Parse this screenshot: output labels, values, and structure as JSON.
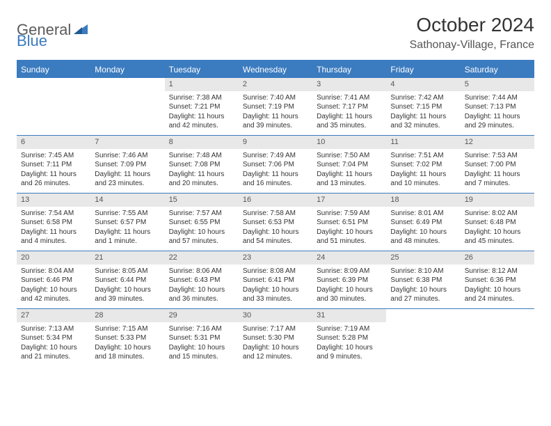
{
  "brand": {
    "part1": "General",
    "part2": "Blue"
  },
  "title": "October 2024",
  "location": "Sathonay-Village, France",
  "colors": {
    "accent": "#3b7bbf",
    "header_bg": "#3b7bbf",
    "header_text": "#ffffff",
    "daynum_bg": "#e8e8e8",
    "text": "#333333",
    "logo_gray": "#5a5a5a",
    "logo_blue": "#3b7bbf"
  },
  "daynames": [
    "Sunday",
    "Monday",
    "Tuesday",
    "Wednesday",
    "Thursday",
    "Friday",
    "Saturday"
  ],
  "weeks": [
    [
      {
        "n": "",
        "sr": "",
        "ss": "",
        "dl": ""
      },
      {
        "n": "",
        "sr": "",
        "ss": "",
        "dl": ""
      },
      {
        "n": "1",
        "sr": "Sunrise: 7:38 AM",
        "ss": "Sunset: 7:21 PM",
        "dl": "Daylight: 11 hours and 42 minutes."
      },
      {
        "n": "2",
        "sr": "Sunrise: 7:40 AM",
        "ss": "Sunset: 7:19 PM",
        "dl": "Daylight: 11 hours and 39 minutes."
      },
      {
        "n": "3",
        "sr": "Sunrise: 7:41 AM",
        "ss": "Sunset: 7:17 PM",
        "dl": "Daylight: 11 hours and 35 minutes."
      },
      {
        "n": "4",
        "sr": "Sunrise: 7:42 AM",
        "ss": "Sunset: 7:15 PM",
        "dl": "Daylight: 11 hours and 32 minutes."
      },
      {
        "n": "5",
        "sr": "Sunrise: 7:44 AM",
        "ss": "Sunset: 7:13 PM",
        "dl": "Daylight: 11 hours and 29 minutes."
      }
    ],
    [
      {
        "n": "6",
        "sr": "Sunrise: 7:45 AM",
        "ss": "Sunset: 7:11 PM",
        "dl": "Daylight: 11 hours and 26 minutes."
      },
      {
        "n": "7",
        "sr": "Sunrise: 7:46 AM",
        "ss": "Sunset: 7:09 PM",
        "dl": "Daylight: 11 hours and 23 minutes."
      },
      {
        "n": "8",
        "sr": "Sunrise: 7:48 AM",
        "ss": "Sunset: 7:08 PM",
        "dl": "Daylight: 11 hours and 20 minutes."
      },
      {
        "n": "9",
        "sr": "Sunrise: 7:49 AM",
        "ss": "Sunset: 7:06 PM",
        "dl": "Daylight: 11 hours and 16 minutes."
      },
      {
        "n": "10",
        "sr": "Sunrise: 7:50 AM",
        "ss": "Sunset: 7:04 PM",
        "dl": "Daylight: 11 hours and 13 minutes."
      },
      {
        "n": "11",
        "sr": "Sunrise: 7:51 AM",
        "ss": "Sunset: 7:02 PM",
        "dl": "Daylight: 11 hours and 10 minutes."
      },
      {
        "n": "12",
        "sr": "Sunrise: 7:53 AM",
        "ss": "Sunset: 7:00 PM",
        "dl": "Daylight: 11 hours and 7 minutes."
      }
    ],
    [
      {
        "n": "13",
        "sr": "Sunrise: 7:54 AM",
        "ss": "Sunset: 6:58 PM",
        "dl": "Daylight: 11 hours and 4 minutes."
      },
      {
        "n": "14",
        "sr": "Sunrise: 7:55 AM",
        "ss": "Sunset: 6:57 PM",
        "dl": "Daylight: 11 hours and 1 minute."
      },
      {
        "n": "15",
        "sr": "Sunrise: 7:57 AM",
        "ss": "Sunset: 6:55 PM",
        "dl": "Daylight: 10 hours and 57 minutes."
      },
      {
        "n": "16",
        "sr": "Sunrise: 7:58 AM",
        "ss": "Sunset: 6:53 PM",
        "dl": "Daylight: 10 hours and 54 minutes."
      },
      {
        "n": "17",
        "sr": "Sunrise: 7:59 AM",
        "ss": "Sunset: 6:51 PM",
        "dl": "Daylight: 10 hours and 51 minutes."
      },
      {
        "n": "18",
        "sr": "Sunrise: 8:01 AM",
        "ss": "Sunset: 6:49 PM",
        "dl": "Daylight: 10 hours and 48 minutes."
      },
      {
        "n": "19",
        "sr": "Sunrise: 8:02 AM",
        "ss": "Sunset: 6:48 PM",
        "dl": "Daylight: 10 hours and 45 minutes."
      }
    ],
    [
      {
        "n": "20",
        "sr": "Sunrise: 8:04 AM",
        "ss": "Sunset: 6:46 PM",
        "dl": "Daylight: 10 hours and 42 minutes."
      },
      {
        "n": "21",
        "sr": "Sunrise: 8:05 AM",
        "ss": "Sunset: 6:44 PM",
        "dl": "Daylight: 10 hours and 39 minutes."
      },
      {
        "n": "22",
        "sr": "Sunrise: 8:06 AM",
        "ss": "Sunset: 6:43 PM",
        "dl": "Daylight: 10 hours and 36 minutes."
      },
      {
        "n": "23",
        "sr": "Sunrise: 8:08 AM",
        "ss": "Sunset: 6:41 PM",
        "dl": "Daylight: 10 hours and 33 minutes."
      },
      {
        "n": "24",
        "sr": "Sunrise: 8:09 AM",
        "ss": "Sunset: 6:39 PM",
        "dl": "Daylight: 10 hours and 30 minutes."
      },
      {
        "n": "25",
        "sr": "Sunrise: 8:10 AM",
        "ss": "Sunset: 6:38 PM",
        "dl": "Daylight: 10 hours and 27 minutes."
      },
      {
        "n": "26",
        "sr": "Sunrise: 8:12 AM",
        "ss": "Sunset: 6:36 PM",
        "dl": "Daylight: 10 hours and 24 minutes."
      }
    ],
    [
      {
        "n": "27",
        "sr": "Sunrise: 7:13 AM",
        "ss": "Sunset: 5:34 PM",
        "dl": "Daylight: 10 hours and 21 minutes."
      },
      {
        "n": "28",
        "sr": "Sunrise: 7:15 AM",
        "ss": "Sunset: 5:33 PM",
        "dl": "Daylight: 10 hours and 18 minutes."
      },
      {
        "n": "29",
        "sr": "Sunrise: 7:16 AM",
        "ss": "Sunset: 5:31 PM",
        "dl": "Daylight: 10 hours and 15 minutes."
      },
      {
        "n": "30",
        "sr": "Sunrise: 7:17 AM",
        "ss": "Sunset: 5:30 PM",
        "dl": "Daylight: 10 hours and 12 minutes."
      },
      {
        "n": "31",
        "sr": "Sunrise: 7:19 AM",
        "ss": "Sunset: 5:28 PM",
        "dl": "Daylight: 10 hours and 9 minutes."
      },
      {
        "n": "",
        "sr": "",
        "ss": "",
        "dl": ""
      },
      {
        "n": "",
        "sr": "",
        "ss": "",
        "dl": ""
      }
    ]
  ]
}
